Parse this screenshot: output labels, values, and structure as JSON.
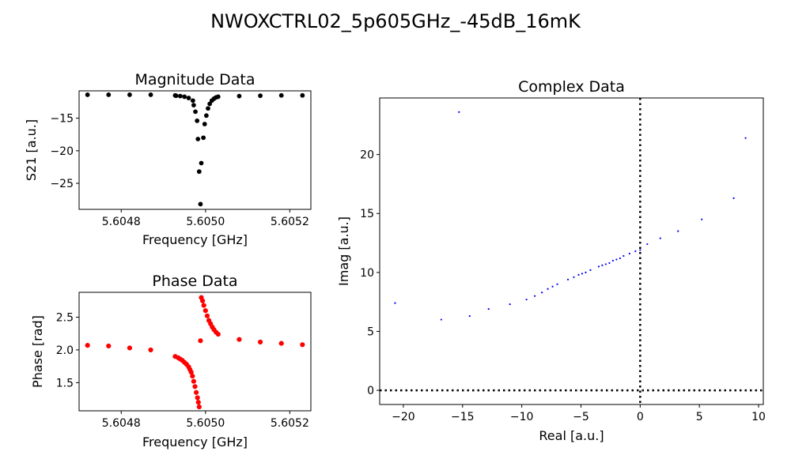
{
  "figure": {
    "suptitle": "NWOXCTRL02_5p605GHz_-45dB_16mK"
  },
  "chart_data": [
    {
      "id": "magnitude",
      "type": "scatter",
      "title": "Magnitude Data",
      "xlabel": "Frequency [GHz]",
      "ylabel": "S21 [a.u.]",
      "xlim": [
        5.6047,
        5.60525
      ],
      "ylim": [
        -29,
        -10.8
      ],
      "xticks": [
        5.6048,
        5.605,
        5.6052
      ],
      "xtick_labels": [
        "5.6048",
        "5.6050",
        "5.6052"
      ],
      "yticks": [
        -15,
        -20,
        -25
      ],
      "ytick_labels": [
        "−15",
        "−20",
        "−25"
      ],
      "color": "#000000",
      "x": [
        5.60472,
        5.60477,
        5.60482,
        5.60487,
        5.604928,
        5.60493,
        5.60494,
        5.60495,
        5.60496,
        5.60497,
        5.604972,
        5.604976,
        5.60498,
        5.604982,
        5.604985,
        5.604988,
        5.60499,
        5.604995,
        5.604998,
        5.605002,
        5.605006,
        5.60501,
        5.605015,
        5.60502,
        5.605025,
        5.60503,
        5.60508,
        5.60513,
        5.60518,
        5.60523
      ],
      "y": [
        -11.4,
        -11.4,
        -11.4,
        -11.4,
        -11.5,
        -11.55,
        -11.6,
        -11.7,
        -11.9,
        -12.3,
        -13.0,
        -14.0,
        -15.4,
        -18.2,
        -23.2,
        -28.2,
        -21.9,
        -18.0,
        -15.9,
        -14.6,
        -13.5,
        -12.8,
        -12.3,
        -12.0,
        -11.8,
        -11.7,
        -11.6,
        -11.55,
        -11.5,
        -11.5
      ]
    },
    {
      "id": "phase",
      "type": "scatter",
      "title": "Phase Data",
      "xlabel": "Frequency [GHz]",
      "ylabel": "Phase [rad]",
      "xlim": [
        5.6047,
        5.60525
      ],
      "ylim": [
        1.07,
        2.88
      ],
      "xticks": [
        5.6048,
        5.605,
        5.6052
      ],
      "xtick_labels": [
        "5.6048",
        "5.6050",
        "5.6052"
      ],
      "yticks": [
        1.5,
        2.0,
        2.5
      ],
      "ytick_labels": [
        "1.5",
        "2.0",
        "2.5"
      ],
      "color": "#ff0000",
      "x": [
        5.60472,
        5.60477,
        5.60482,
        5.60487,
        5.604928,
        5.604935,
        5.60494,
        5.604945,
        5.60495,
        5.604955,
        5.60496,
        5.604963,
        5.604966,
        5.604969,
        5.604972,
        5.604975,
        5.604978,
        5.604981,
        5.604983,
        5.604985,
        5.604988,
        5.60499,
        5.604993,
        5.604996,
        5.605,
        5.605004,
        5.605008,
        5.605012,
        5.605016,
        5.60502,
        5.605025,
        5.60503,
        5.60508,
        5.60513,
        5.60518,
        5.60523
      ],
      "y": [
        2.07,
        2.06,
        2.03,
        2.0,
        1.9,
        1.88,
        1.86,
        1.84,
        1.81,
        1.78,
        1.74,
        1.7,
        1.66,
        1.6,
        1.52,
        1.44,
        1.35,
        1.27,
        1.2,
        1.13,
        2.14,
        2.8,
        2.75,
        2.68,
        2.6,
        2.52,
        2.45,
        2.4,
        2.35,
        2.31,
        2.27,
        2.24,
        2.16,
        2.12,
        2.1,
        2.08
      ]
    },
    {
      "id": "complex",
      "type": "scatter",
      "title": "Complex Data",
      "xlabel": "Real [a.u.]",
      "ylabel": "Imag [a.u.]",
      "xlim": [
        -22.0,
        10.4
      ],
      "ylim": [
        -1.2,
        24.8
      ],
      "xticks": [
        -20,
        -15,
        -10,
        -5,
        0,
        5,
        10
      ],
      "xtick_labels": [
        "−20",
        "−15",
        "−10",
        "−5",
        "0",
        "5",
        "10"
      ],
      "yticks": [
        0,
        5,
        10,
        15,
        20
      ],
      "ytick_labels": [
        "0",
        "5",
        "10",
        "15",
        "20"
      ],
      "color": "#0000ff",
      "reference_lines": {
        "x": 0,
        "y": 0
      },
      "x": [
        -15.3,
        8.9,
        -20.7,
        -16.8,
        -14.4,
        -12.8,
        -11.0,
        -9.6,
        -8.9,
        -8.3,
        -7.8,
        -7.4,
        -7.0,
        -6.1,
        -5.6,
        -5.2,
        -4.9,
        -4.6,
        -4.2,
        -3.5,
        -3.2,
        -2.9,
        -2.6,
        -2.3,
        -2.0,
        -1.7,
        -1.4,
        -0.9,
        -0.4,
        0.0,
        0.6,
        1.7,
        3.2,
        5.2,
        7.9
      ],
      "y": [
        23.6,
        21.4,
        7.4,
        6.0,
        6.3,
        6.9,
        7.3,
        7.7,
        8.0,
        8.3,
        8.6,
        8.8,
        9.0,
        9.4,
        9.6,
        9.8,
        9.9,
        10.0,
        10.2,
        10.5,
        10.6,
        10.7,
        10.8,
        11.0,
        11.1,
        11.2,
        11.4,
        11.6,
        11.8,
        11.9,
        12.4,
        12.9,
        13.5,
        14.5,
        16.3
      ]
    }
  ]
}
